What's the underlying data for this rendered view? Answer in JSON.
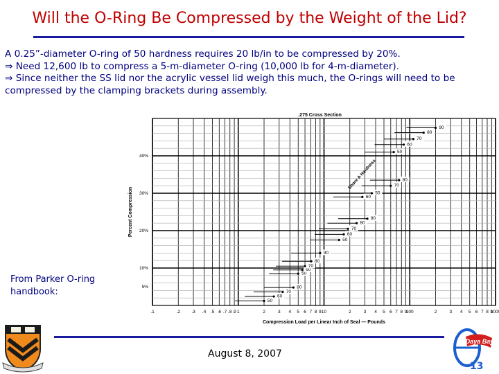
{
  "slide": {
    "title": "Will the O-Ring Be Compressed by the Weight of the Lid?",
    "bullets": [
      "A 0.25”-diameter O-ring of 50 hardness requires 20 lb/in to be compressed by 20%.",
      "⇒ Need 12,600 lb to compress a 5-m-diameter O-ring (10,000 lb for 4-m-diameter).",
      "⇒ Since neither the SS lid nor the acrylic vessel lid weigh this much, the O-rings will need to be compressed by the clamping brackets during assembly."
    ],
    "source_note": "From Parker O-ring handbook:",
    "date": "August 8, 2007",
    "page_number": "13",
    "logo_text": "Daya Bay",
    "colors": {
      "title": "#c00000",
      "body_text": "#000080",
      "rule": "#1a1aa0"
    }
  },
  "chart_data": {
    "type": "scatter",
    "title": ".275 Cross Section",
    "xlabel": "Compression Load per Linear Inch of Seal — Pounds",
    "ylabel": "Percent Compression",
    "x_scale": "log",
    "xlim": [
      0.1,
      1000
    ],
    "x_tick_labels": [
      ".1",
      ".2",
      ".3",
      ".4",
      ".5",
      ".6",
      ".7",
      ".8",
      ".9",
      "1",
      "2",
      "3",
      "4",
      "5",
      "6",
      "7",
      "8",
      "9",
      "10",
      "2",
      "3",
      "4",
      "5",
      "6",
      "7",
      "8",
      "9",
      "100",
      "2",
      "3",
      "4",
      "5",
      "6",
      "7",
      "8",
      "9",
      "1000"
    ],
    "ylim": [
      0,
      50
    ],
    "y_ticks": [
      5,
      10,
      20,
      30,
      40
    ],
    "y_tick_labels": [
      "5%",
      "10%",
      "20%",
      "30%",
      "40%"
    ],
    "grid": true,
    "annotation": "Shore A Hardness",
    "series": [
      {
        "name": "5%",
        "points": [
          [
            2.0,
            1.2,
            "50"
          ],
          [
            2.6,
            2.4,
            "60"
          ],
          [
            3.3,
            3.6,
            "70"
          ],
          [
            4.4,
            4.8,
            "80"
          ]
        ]
      },
      {
        "name": "10%",
        "points": [
          [
            5.0,
            8.5,
            "50"
          ],
          [
            5.6,
            9.5,
            "60"
          ],
          [
            6.0,
            10.5,
            "70"
          ],
          [
            7.1,
            11.8,
            "80"
          ],
          [
            9.0,
            14.0,
            "90"
          ]
        ]
      },
      {
        "name": "20%",
        "points": [
          [
            15.0,
            17.5,
            "50"
          ],
          [
            17.0,
            19.0,
            "60"
          ],
          [
            19.0,
            20.5,
            "70"
          ],
          [
            24.0,
            22.0,
            "80"
          ],
          [
            32.0,
            23.2,
            "90"
          ]
        ]
      },
      {
        "name": "30%",
        "points": [
          [
            28.0,
            29.0,
            "60"
          ],
          [
            36.0,
            30.0,
            "50"
          ],
          [
            60.0,
            32.0,
            "70"
          ],
          [
            75.0,
            33.5,
            "80"
          ]
        ]
      },
      {
        "name": "40%",
        "points": [
          [
            65.0,
            41.0,
            "50"
          ],
          [
            85.0,
            43.0,
            "60"
          ],
          [
            110.0,
            44.5,
            "70"
          ],
          [
            145.0,
            46.2,
            "80"
          ],
          [
            200.0,
            47.5,
            "90"
          ]
        ]
      }
    ]
  }
}
